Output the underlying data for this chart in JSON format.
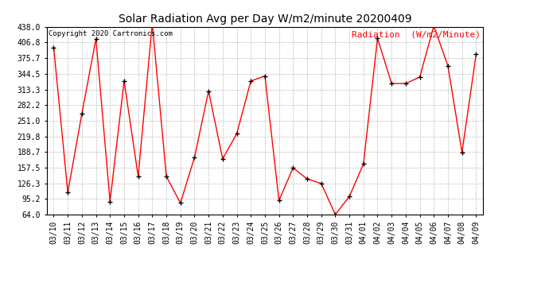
{
  "title": "Solar Radiation Avg per Day W/m2/minute 20200409",
  "copyright": "Copyright 2020 Cartronics.com",
  "legend_label": "Radiation  (W/m2/Minute)",
  "dates": [
    "03/10",
    "03/11",
    "03/12",
    "03/13",
    "03/14",
    "03/15",
    "03/16",
    "03/17",
    "03/18",
    "03/19",
    "03/20",
    "03/21",
    "03/22",
    "03/23",
    "03/24",
    "03/25",
    "03/26",
    "03/27",
    "03/28",
    "03/29",
    "03/30",
    "03/31",
    "04/01",
    "04/02",
    "04/03",
    "04/04",
    "04/05",
    "04/06",
    "04/07",
    "04/08",
    "04/09"
  ],
  "values": [
    397.0,
    108.0,
    265.0,
    414.0,
    90.0,
    330.0,
    140.0,
    445.0,
    140.0,
    87.0,
    178.0,
    310.0,
    175.0,
    225.0,
    330.0,
    340.0,
    92.0,
    157.0,
    135.0,
    126.0,
    64.0,
    100.0,
    165.0,
    415.0,
    325.0,
    325.0,
    338.0,
    440.0,
    360.0,
    188.0,
    383.0
  ],
  "ymin": 64.0,
  "ymax": 438.0,
  "yticks": [
    64.0,
    95.2,
    126.3,
    157.5,
    188.7,
    219.8,
    251.0,
    282.2,
    313.3,
    344.5,
    375.7,
    406.8,
    438.0
  ],
  "line_color": "red",
  "marker_color": "black",
  "grid_color": "#bbbbbb",
  "bg_color": "#ffffff",
  "title_fontsize": 10,
  "copyright_fontsize": 6.5,
  "legend_fontsize": 8,
  "tick_fontsize": 7
}
